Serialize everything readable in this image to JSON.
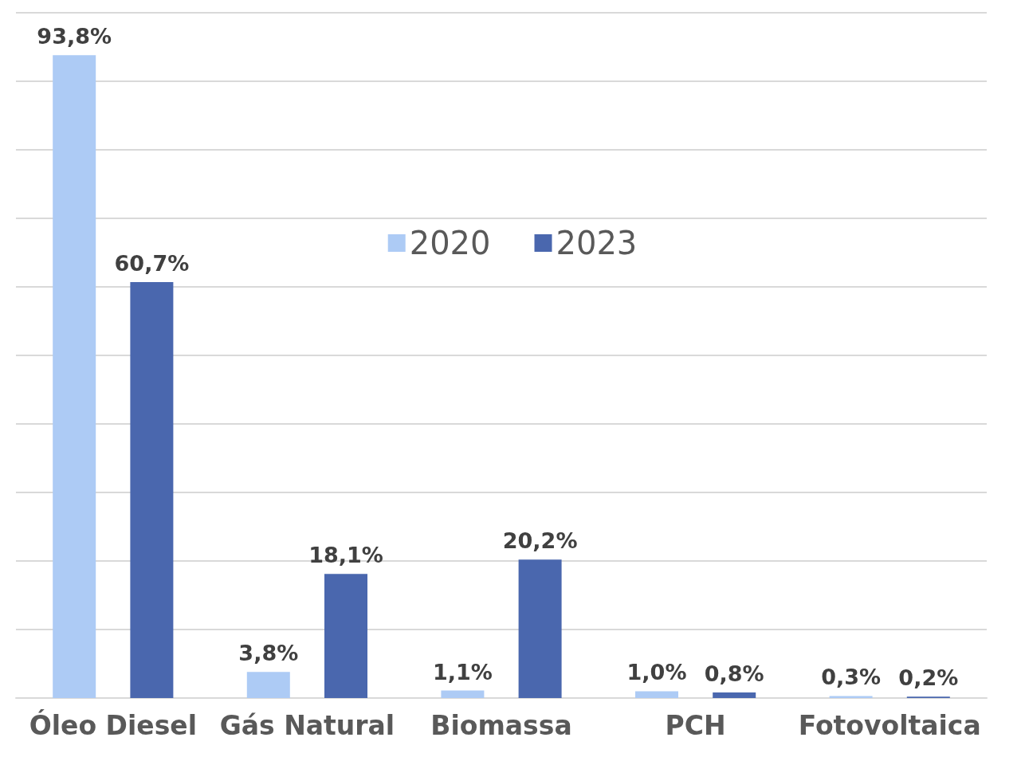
{
  "chart_data": {
    "type": "bar",
    "categories": [
      "Óleo Diesel",
      "Gás Natural",
      "Biomassa",
      "PCH",
      "Fotovoltaica"
    ],
    "series": [
      {
        "name": "2020",
        "color": "#adcbf5",
        "values": [
          93.8,
          3.8,
          1.1,
          1.0,
          0.3
        ],
        "value_labels": [
          "93,8%",
          "3,8%",
          "1,1%",
          "1,0%",
          "0,3%"
        ]
      },
      {
        "name": "2023",
        "color": "#4a67ae",
        "values": [
          60.7,
          18.1,
          20.2,
          0.8,
          0.2
        ],
        "value_labels": [
          "60,7%",
          "18,1%",
          "20,2%",
          "0,8%",
          "0,2%"
        ]
      }
    ],
    "ylim": [
      0,
      100
    ],
    "yticks": [
      {
        "value": 0,
        "label": null
      },
      {
        "value": 10,
        "label": null
      },
      {
        "value": 20,
        "label": null
      },
      {
        "value": 30,
        "label": null
      },
      {
        "value": 40,
        "label": null
      },
      {
        "value": 50,
        "label": null
      },
      {
        "value": 60,
        "label": null
      },
      {
        "value": 70,
        "label": null
      },
      {
        "value": 80,
        "label": null
      },
      {
        "value": 90,
        "label": null
      },
      {
        "value": 100,
        "label": null
      }
    ],
    "tick_labels": "x",
    "grid": "y",
    "legend": "top"
  }
}
